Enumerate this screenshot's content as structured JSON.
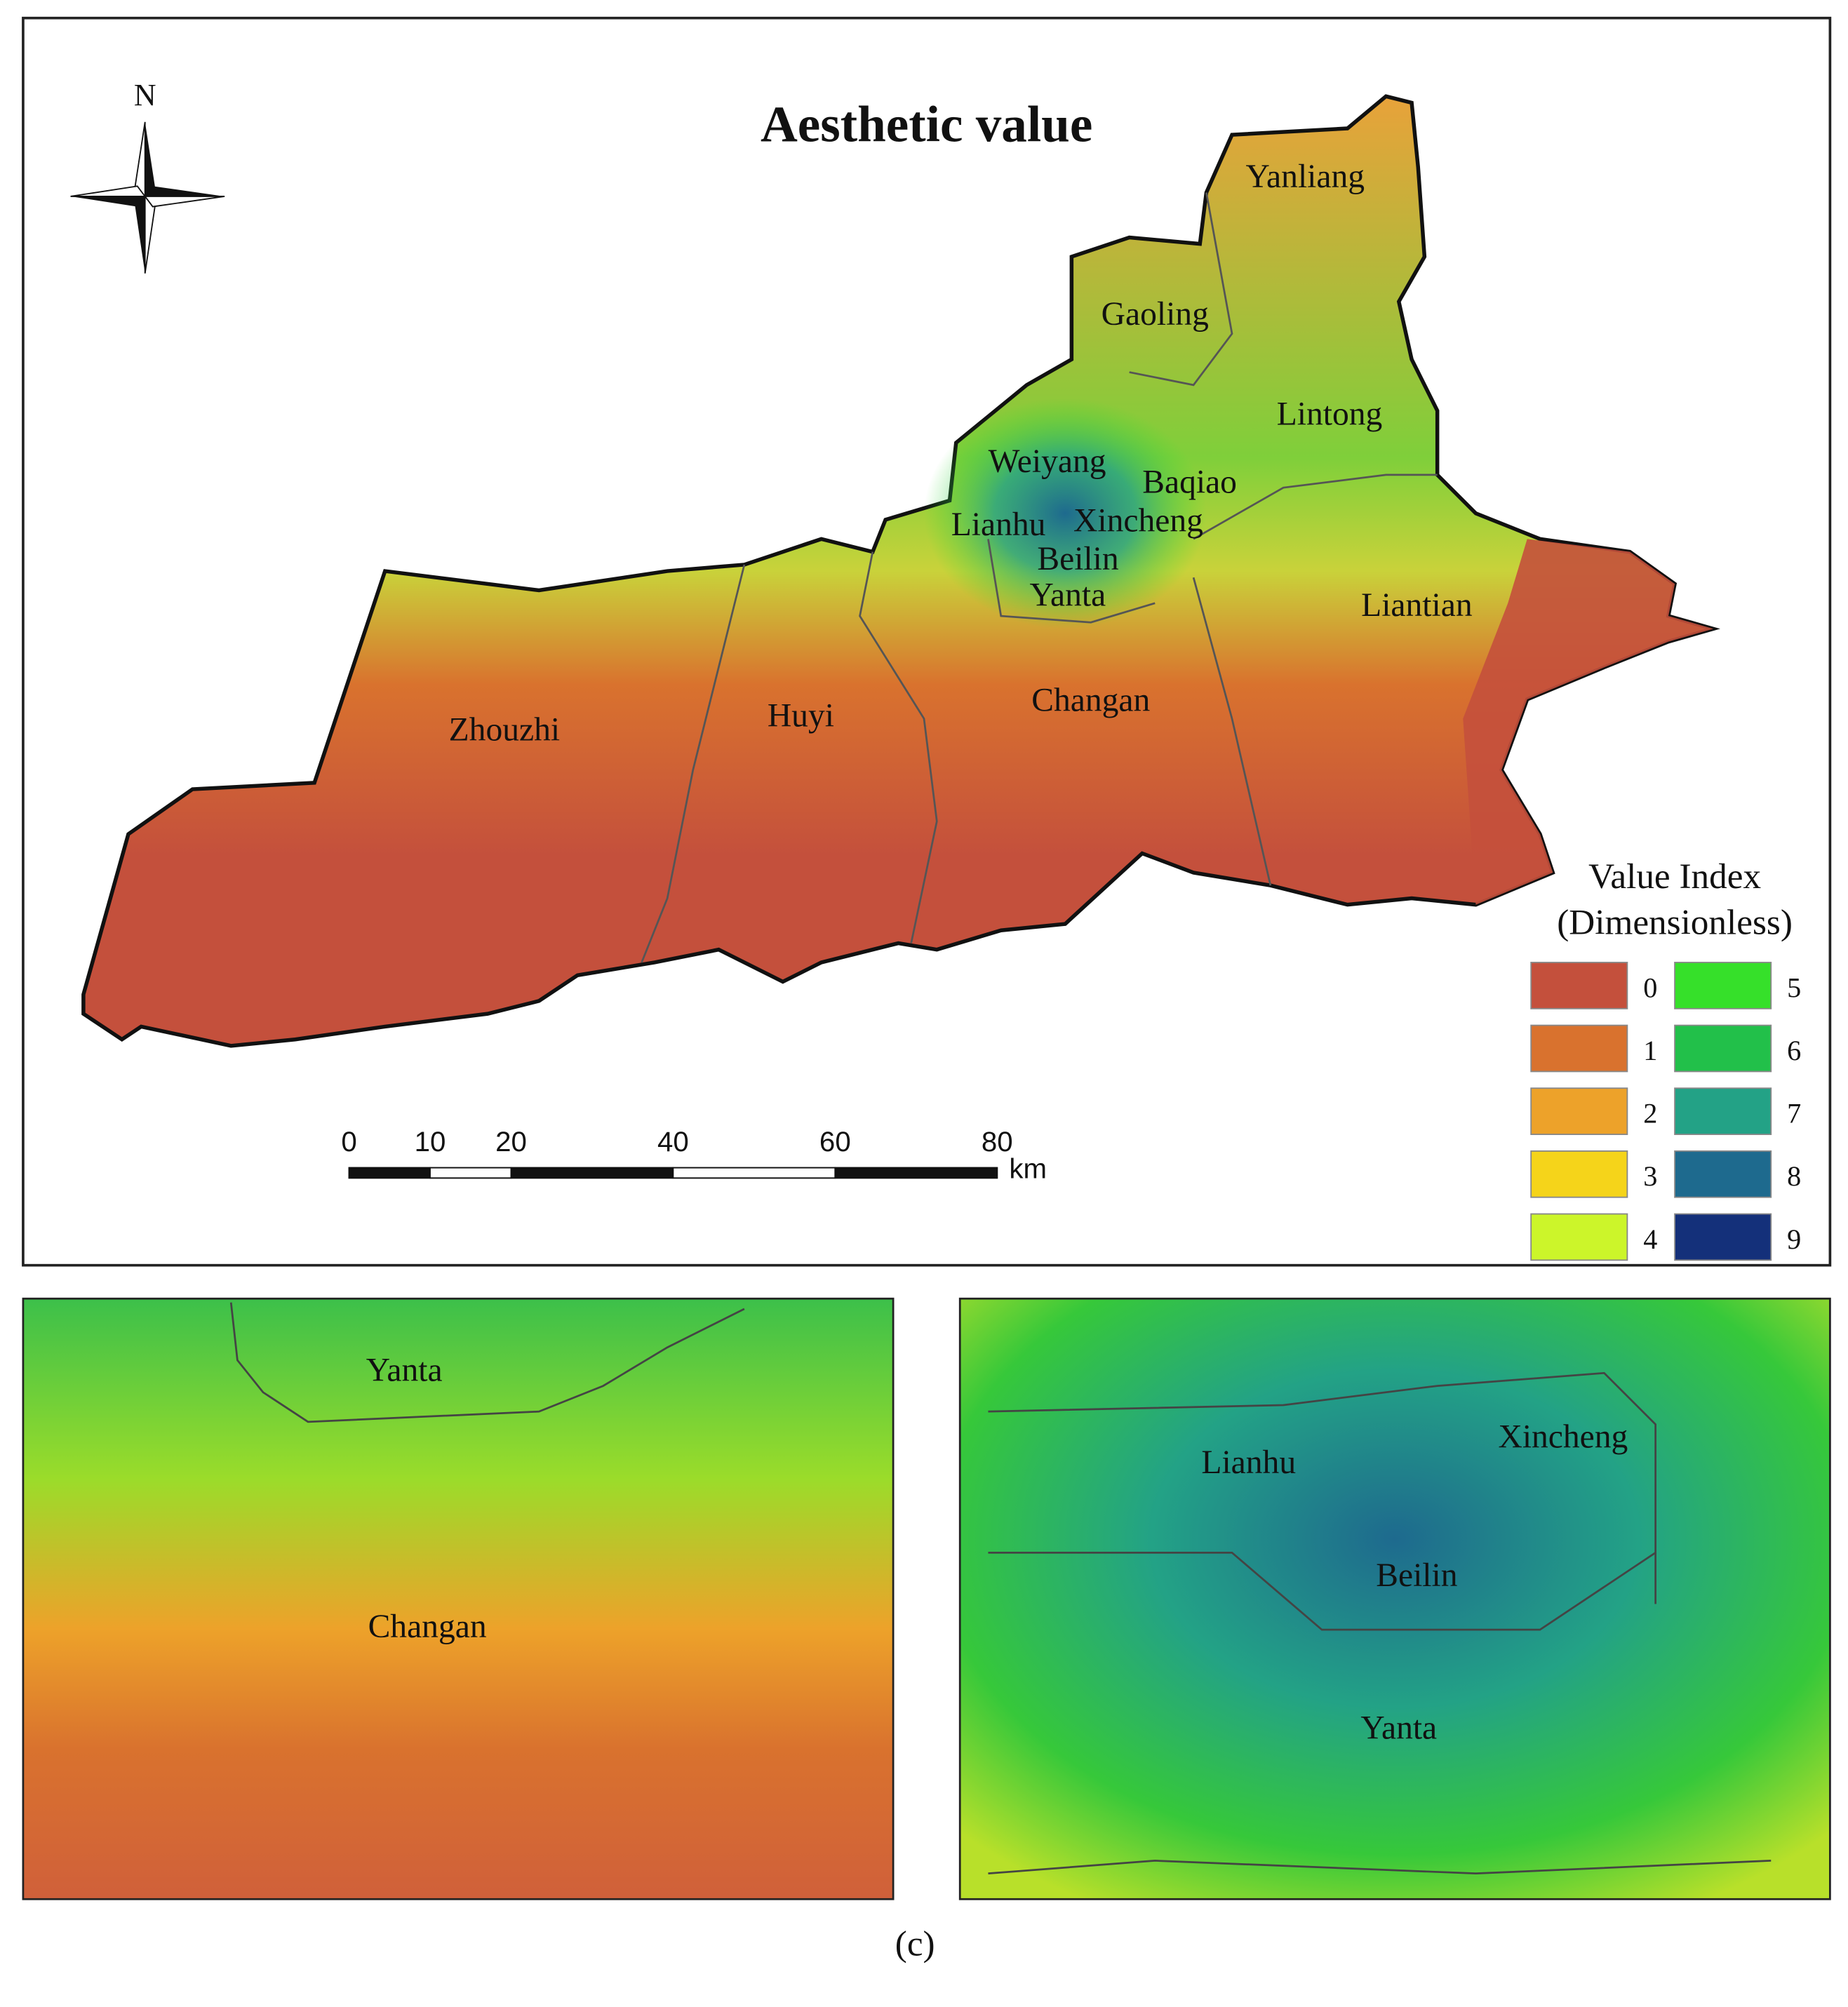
{
  "main_map": {
    "title": "Aesthetic value",
    "north_label": "N",
    "districts": [
      "Yanliang",
      "Gaoling",
      "Lintong",
      "Weiyang",
      "Baqiao",
      "Lianhu",
      "Xincheng",
      "Beilin",
      "Yanta",
      "Liantian",
      "Changan",
      "Huyi",
      "Zhouzhi"
    ],
    "legend": {
      "title": [
        "Value Index",
        "(Dimensionless)"
      ],
      "items": [
        {
          "label": "0",
          "color": "#c4503c"
        },
        {
          "label": "1",
          "color": "#d9722e"
        },
        {
          "label": "2",
          "color": "#eda22a"
        },
        {
          "label": "3",
          "color": "#f5d41a"
        },
        {
          "label": "4",
          "color": "#ccf52a"
        },
        {
          "label": "5",
          "color": "#36e02a"
        },
        {
          "label": "6",
          "color": "#22c04a"
        },
        {
          "label": "7",
          "color": "#23a286"
        },
        {
          "label": "8",
          "color": "#1e6a8e"
        },
        {
          "label": "9",
          "color": "#14307a"
        }
      ]
    },
    "scale_bar": {
      "ticks": [
        0,
        10,
        20,
        40,
        60,
        80
      ],
      "unit": "km"
    }
  },
  "insets": [
    {
      "labels": [
        "Yanta",
        "Changan"
      ]
    },
    {
      "labels": [
        "Lianhu",
        "Xincheng",
        "Beilin",
        "Yanta"
      ]
    }
  ],
  "caption": "(c)"
}
